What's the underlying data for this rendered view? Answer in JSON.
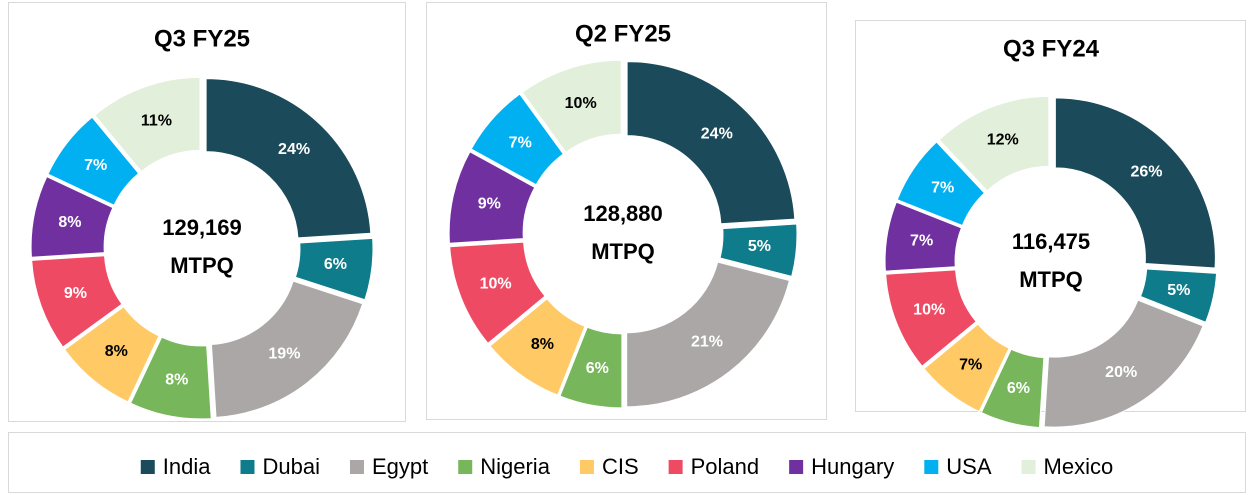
{
  "chart_data": [
    {
      "type": "pie",
      "title": "Q3 FY25",
      "center_label": [
        "129,169",
        "MTPQ"
      ],
      "categories": [
        "India",
        "Dubai",
        "Egypt",
        "Nigeria",
        "CIS",
        "Poland",
        "Hungary",
        "USA",
        "Mexico"
      ],
      "values": [
        24,
        6,
        19,
        8,
        8,
        9,
        8,
        7,
        11
      ],
      "value_labels": [
        "24%",
        "6%",
        "19%",
        "8%",
        "8%",
        "9%",
        "8%",
        "7%",
        "11%"
      ],
      "colors": [
        "#1b4a5a",
        "#0e7c8a",
        "#aaa7a6",
        "#77b65a",
        "#ffc966",
        "#ef4a63",
        "#7030a0",
        "#00b0f0",
        "#e2efda"
      ]
    },
    {
      "type": "pie",
      "title": "Q2 FY25",
      "center_label": [
        "128,880",
        "MTPQ"
      ],
      "categories": [
        "India",
        "Dubai",
        "Egypt",
        "Nigeria",
        "CIS",
        "Poland",
        "Hungary",
        "USA",
        "Mexico"
      ],
      "values": [
        24,
        5,
        21,
        6,
        8,
        10,
        9,
        7,
        10
      ],
      "value_labels": [
        "24%",
        "5%",
        "21%",
        "6%",
        "8%",
        "10%",
        "9%",
        "7%",
        "10%"
      ],
      "colors": [
        "#1b4a5a",
        "#0e7c8a",
        "#aaa7a6",
        "#77b65a",
        "#ffc966",
        "#ef4a63",
        "#7030a0",
        "#00b0f0",
        "#e2efda"
      ]
    },
    {
      "type": "pie",
      "title": "Q3 FY24",
      "center_label": [
        "116,475",
        "MTPQ"
      ],
      "categories": [
        "India",
        "Dubai",
        "Egypt",
        "Nigeria",
        "CIS",
        "Poland",
        "Hungary",
        "USA",
        "Mexico"
      ],
      "values": [
        26,
        5,
        20,
        6,
        7,
        10,
        7,
        7,
        12
      ],
      "value_labels": [
        "26%",
        "5%",
        "20%",
        "6%",
        "7%",
        "10%",
        "7%",
        "7%",
        "12%"
      ],
      "colors": [
        "#1b4a5a",
        "#0e7c8a",
        "#aaa7a6",
        "#77b65a",
        "#ffc966",
        "#ef4a63",
        "#7030a0",
        "#00b0f0",
        "#e2efda"
      ]
    }
  ]
}
